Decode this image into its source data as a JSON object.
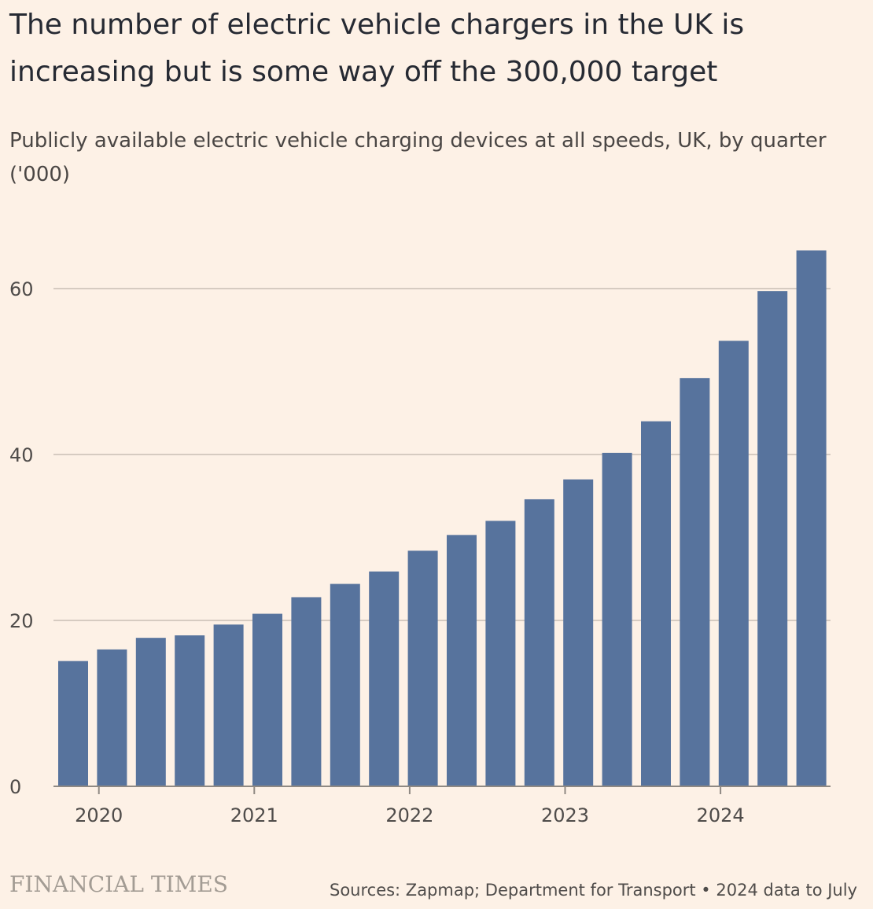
{
  "title": "The number of electric vehicle chargers in the UK is increasing but is some way off the 300,000 target",
  "subtitle": "Publicly available electric vehicle charging devices at all speeds, UK, by quarter ('000)",
  "brand": "FINANCIAL TIMES",
  "source": "Sources: Zapmap; Department for Transport • 2024 data to July",
  "colors": {
    "background": "#fdf1e6",
    "bar": "#57739d",
    "grid": "#d6cbc1",
    "axis": "#8f8983"
  },
  "chart_data": {
    "type": "bar",
    "categories": [
      "2020 Q1",
      "2020 Q2",
      "2020 Q3",
      "2020 Q4",
      "2021 Q1",
      "2021 Q2",
      "2021 Q3",
      "2021 Q4",
      "2022 Q1",
      "2022 Q2",
      "2022 Q3",
      "2022 Q4",
      "2023 Q1",
      "2023 Q2",
      "2023 Q3",
      "2023 Q4",
      "2024 Q1",
      "2024 Q2",
      "2024 Q3",
      "2024 Q4"
    ],
    "values": [
      15.1,
      16.5,
      17.9,
      18.2,
      19.5,
      20.8,
      22.8,
      24.4,
      25.9,
      28.4,
      30.3,
      32.0,
      34.6,
      37.0,
      40.2,
      44.0,
      49.2,
      53.7,
      59.7,
      64.6
    ],
    "x_ticks": [
      "2020",
      "2021",
      "2022",
      "2023",
      "2024"
    ],
    "y_ticks": [
      0,
      20,
      40,
      60
    ],
    "ylim": [
      0,
      70
    ],
    "grid": true,
    "xlabel": "",
    "ylabel": ""
  }
}
